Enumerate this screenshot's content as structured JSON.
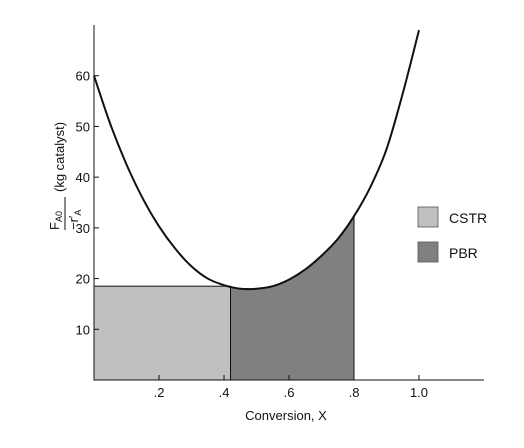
{
  "chart_data": {
    "type": "area",
    "title": "",
    "xlabel": "Conversion, X",
    "ylabel": {
      "numerator": "F",
      "numerator_sub": "A0",
      "denominator": "−r′",
      "denominator_sub": "A",
      "units": "(kg catalyst)"
    },
    "xlim": [
      0,
      1.2
    ],
    "ylim": [
      0,
      70
    ],
    "x_ticks": [
      {
        "value": 0.2,
        "label": ".2"
      },
      {
        "value": 0.4,
        "label": ".4"
      },
      {
        "value": 0.6,
        "label": ".6"
      },
      {
        "value": 0.8,
        "label": ".8"
      },
      {
        "value": 1.0,
        "label": "1.0"
      }
    ],
    "y_ticks": [
      {
        "value": 10,
        "label": "10"
      },
      {
        "value": 20,
        "label": "20"
      },
      {
        "value": 30,
        "label": "30"
      },
      {
        "value": 40,
        "label": "40"
      },
      {
        "value": 50,
        "label": "50"
      },
      {
        "value": 60,
        "label": "60"
      }
    ],
    "curve": {
      "x": [
        0.0,
        0.05,
        0.1,
        0.15,
        0.2,
        0.25,
        0.3,
        0.35,
        0.4,
        0.45,
        0.5,
        0.55,
        0.6,
        0.65,
        0.7,
        0.75,
        0.8,
        0.85,
        0.9,
        0.95,
        1.0
      ],
      "y": [
        60.0,
        50.5,
        42.5,
        35.8,
        30.3,
        25.9,
        22.4,
        20.0,
        18.7,
        18.0,
        18.0,
        18.5,
        19.8,
        21.8,
        24.5,
        27.8,
        32.3,
        38.0,
        45.5,
        56.5,
        69.0
      ]
    },
    "regions": [
      {
        "name": "CSTR",
        "x0": 0.0,
        "x1": 0.42,
        "height": 18.5,
        "color": "#c0c0c0"
      },
      {
        "name": "PBR",
        "x0": 0.42,
        "x1": 0.8,
        "color": "#808080"
      }
    ],
    "legend": {
      "position": "right",
      "items": [
        {
          "label": "CSTR",
          "color": "#c0c0c0"
        },
        {
          "label": "PBR",
          "color": "#808080"
        }
      ]
    },
    "grid": false
  }
}
